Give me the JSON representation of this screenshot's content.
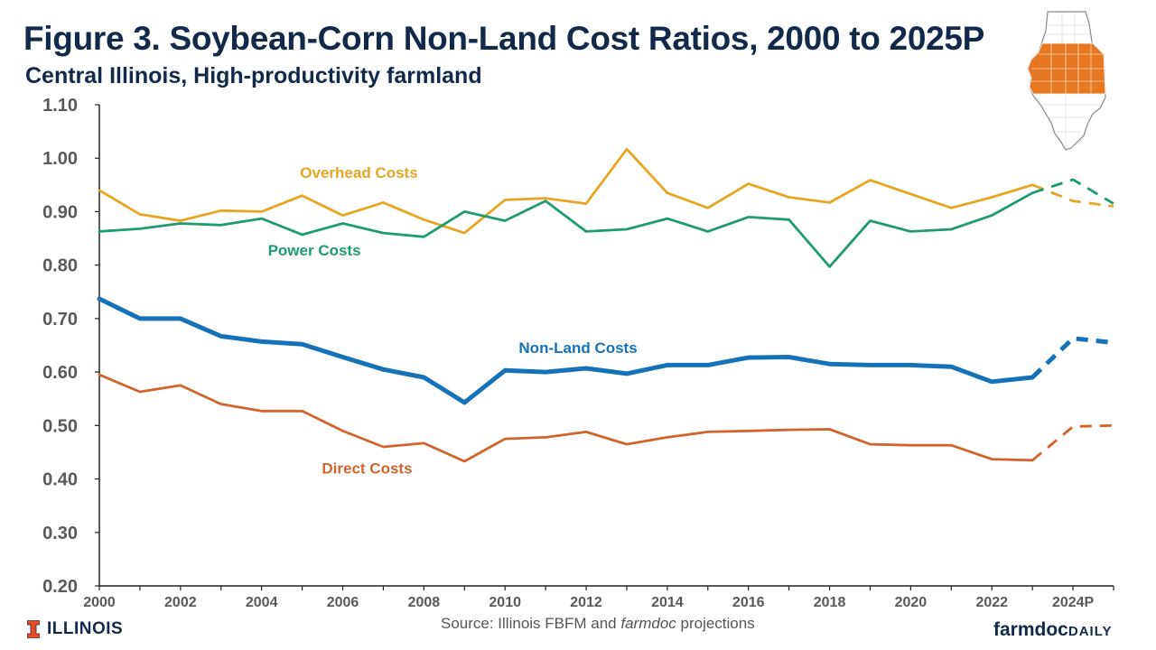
{
  "header": {
    "title": "Figure 3. Soybean-Corn Non-Land Cost Ratios, 2000 to 2025P",
    "subtitle": "Central Illinois, High-productivity farmland"
  },
  "footer": {
    "source_prefix": "Source: Illinois FBFM and ",
    "source_italic": "farmdoc",
    "source_suffix": " projections",
    "left_logo_text": "ILLINOIS",
    "right_logo_main": "farmdoc",
    "right_logo_sub": "DAILY"
  },
  "colors": {
    "overhead": "#E8A521",
    "power": "#1E9B73",
    "nonland": "#1672B8",
    "direct": "#D2632A",
    "title": "#13294B",
    "illinois_orange": "#E87722"
  },
  "chart_data": {
    "type": "line",
    "title": "Figure 3. Soybean-Corn Non-Land Cost Ratios, 2000 to 2025P",
    "subtitle": "Central Illinois, High-productivity farmland",
    "xlabel": "",
    "ylabel": "",
    "xlim": [
      2000,
      2025
    ],
    "ylim": [
      0.2,
      1.1
    ],
    "x_ticks": [
      2000,
      2002,
      2004,
      2006,
      2008,
      2010,
      2012,
      2014,
      2016,
      2018,
      2020,
      2022,
      2024
    ],
    "x_tick_labels": [
      "2000",
      "2002",
      "2004",
      "2006",
      "2008",
      "2010",
      "2012",
      "2014",
      "2016",
      "2018",
      "2020",
      "2022",
      "2024P"
    ],
    "y_ticks": [
      0.2,
      0.3,
      0.4,
      0.5,
      0.6,
      0.7,
      0.8,
      0.9,
      1.0,
      1.1
    ],
    "y_tick_labels": [
      "0.20",
      "0.30",
      "0.40",
      "0.50",
      "0.60",
      "0.70",
      "0.80",
      "0.90",
      "1.00",
      "1.10"
    ],
    "grid": false,
    "legend": "inline labels",
    "series": [
      {
        "name": "Overhead Costs",
        "x": [
          2000,
          2001,
          2002,
          2003,
          2004,
          2005,
          2006,
          2007,
          2008,
          2009,
          2010,
          2011,
          2012,
          2013,
          2014,
          2015,
          2016,
          2017,
          2018,
          2019,
          2020,
          2021,
          2022,
          2023
        ],
        "values": [
          0.94,
          0.895,
          0.883,
          0.902,
          0.9,
          0.93,
          0.893,
          0.917,
          0.885,
          0.86,
          0.922,
          0.925,
          0.915,
          1.017,
          0.935,
          0.907,
          0.952,
          0.927,
          0.917,
          0.959,
          0.933,
          0.907,
          0.927,
          0.95
        ],
        "projected_x": [
          2023,
          2024,
          2025
        ],
        "projected_values": [
          0.95,
          0.92,
          0.91
        ]
      },
      {
        "name": "Power Costs",
        "x": [
          2000,
          2001,
          2002,
          2003,
          2004,
          2005,
          2006,
          2007,
          2008,
          2009,
          2010,
          2011,
          2012,
          2013,
          2014,
          2015,
          2016,
          2017,
          2018,
          2019,
          2020,
          2021,
          2022,
          2023
        ],
        "values": [
          0.863,
          0.868,
          0.878,
          0.875,
          0.887,
          0.857,
          0.878,
          0.86,
          0.853,
          0.9,
          0.883,
          0.92,
          0.863,
          0.867,
          0.887,
          0.863,
          0.89,
          0.885,
          0.797,
          0.883,
          0.863,
          0.867,
          0.893,
          0.935
        ],
        "projected_x": [
          2023,
          2024,
          2025
        ],
        "projected_values": [
          0.935,
          0.96,
          0.915
        ]
      },
      {
        "name": "Non-Land Costs",
        "x": [
          2000,
          2001,
          2002,
          2003,
          2004,
          2005,
          2006,
          2007,
          2008,
          2009,
          2010,
          2011,
          2012,
          2013,
          2014,
          2015,
          2016,
          2017,
          2018,
          2019,
          2020,
          2021,
          2022,
          2023
        ],
        "values": [
          0.737,
          0.7,
          0.7,
          0.667,
          0.657,
          0.652,
          0.628,
          0.605,
          0.59,
          0.543,
          0.603,
          0.6,
          0.607,
          0.597,
          0.613,
          0.613,
          0.627,
          0.628,
          0.615,
          0.613,
          0.613,
          0.61,
          0.582,
          0.59
        ],
        "projected_x": [
          2023,
          2024,
          2025
        ],
        "projected_values": [
          0.59,
          0.663,
          0.655
        ]
      },
      {
        "name": "Direct Costs",
        "x": [
          2000,
          2001,
          2002,
          2003,
          2004,
          2005,
          2006,
          2007,
          2008,
          2009,
          2010,
          2011,
          2012,
          2013,
          2014,
          2015,
          2016,
          2017,
          2018,
          2019,
          2020,
          2021,
          2022,
          2023
        ],
        "values": [
          0.595,
          0.563,
          0.575,
          0.54,
          0.527,
          0.527,
          0.49,
          0.46,
          0.467,
          0.433,
          0.475,
          0.478,
          0.488,
          0.465,
          0.478,
          0.488,
          0.49,
          0.492,
          0.493,
          0.465,
          0.463,
          0.463,
          0.437,
          0.435
        ],
        "projected_x": [
          2023,
          2024,
          2025
        ],
        "projected_values": [
          0.435,
          0.498,
          0.5
        ]
      }
    ],
    "annotations": [
      {
        "text": "Overhead Costs",
        "series": "Overhead Costs",
        "x": 2006.4,
        "y": 0.963
      },
      {
        "text": "Power Costs",
        "series": "Power Costs",
        "x": 2005.3,
        "y": 0.818
      },
      {
        "text": "Non-Land Costs",
        "series": "Non-Land Costs",
        "x": 2011.8,
        "y": 0.636
      },
      {
        "text": "Direct Costs",
        "series": "Direct Costs",
        "x": 2006.6,
        "y": 0.41
      }
    ]
  }
}
